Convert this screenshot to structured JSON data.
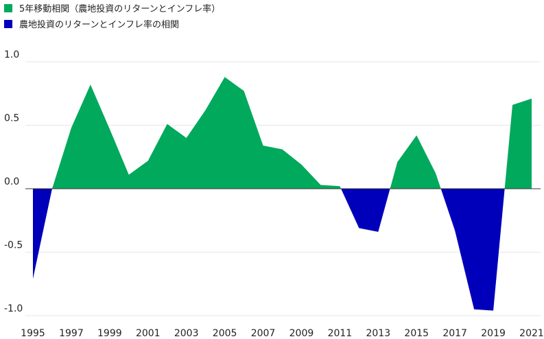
{
  "chart_data": {
    "type": "area",
    "title": "",
    "xlabel": "",
    "ylabel": "",
    "ylim": [
      -1.0,
      1.0
    ],
    "yticks": [
      "1.0",
      "0.5",
      "0.0",
      "-0.5",
      "-1.0"
    ],
    "xticks": [
      "1995",
      "1997",
      "1999",
      "2001",
      "2003",
      "2005",
      "2007",
      "2009",
      "2011",
      "2013",
      "2015",
      "2017",
      "2019",
      "2021"
    ],
    "grid": true,
    "legend_position": "top-left",
    "colors": {
      "positive": "#00a95c",
      "negative": "#0000bb",
      "grid": "#e6e6e6",
      "zero_line": "#333333"
    },
    "legend": [
      {
        "label": "5年移動相関（農地投資のリターンとインフレ率）",
        "color": "#00a95c"
      },
      {
        "label": "農地投資のリターンとインフレ率の相関",
        "color": "#0000bb"
      }
    ],
    "x": [
      1995,
      1996,
      1997,
      1998,
      1999,
      2000,
      2001,
      2002,
      2003,
      2004,
      2005,
      2006,
      2007,
      2008,
      2009,
      2010,
      2011,
      2012,
      2013,
      2014,
      2015,
      2016,
      2017,
      2018,
      2019,
      2020,
      2021
    ],
    "values": [
      -0.71,
      0.0,
      0.48,
      0.82,
      0.47,
      0.11,
      0.22,
      0.51,
      0.4,
      0.62,
      0.88,
      0.77,
      0.34,
      0.31,
      0.19,
      0.03,
      0.02,
      -0.31,
      -0.34,
      0.21,
      0.42,
      0.12,
      -0.33,
      -0.95,
      -0.96,
      0.66,
      0.71
    ]
  }
}
